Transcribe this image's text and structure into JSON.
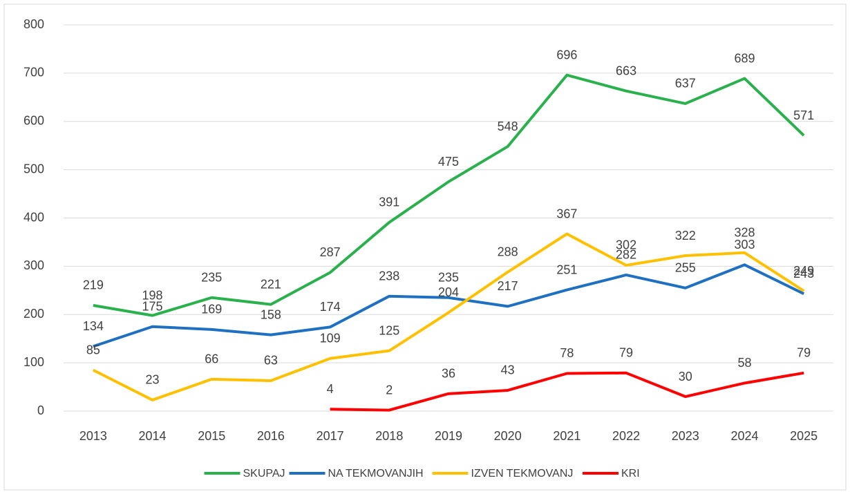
{
  "chart_data": {
    "type": "line",
    "categories": [
      "2013",
      "2014",
      "2015",
      "2016",
      "2017",
      "2018",
      "2019",
      "2020",
      "2021",
      "2022",
      "2023",
      "2024",
      "2025"
    ],
    "series": [
      {
        "name": "SKUPAJ",
        "color": "#2ab04c",
        "values": [
          219,
          198,
          235,
          221,
          287,
          391,
          475,
          548,
          696,
          663,
          637,
          689,
          571
        ]
      },
      {
        "name": "NA TEKMOVANJIH",
        "color": "#1f70c1",
        "values": [
          134,
          175,
          169,
          158,
          174,
          238,
          235,
          217,
          251,
          282,
          255,
          303,
          243
        ]
      },
      {
        "name": "IZVEN TEKMOVANJ",
        "color": "#ffc000",
        "values": [
          85,
          23,
          66,
          63,
          109,
          125,
          204,
          288,
          367,
          302,
          322,
          328,
          249
        ]
      },
      {
        "name": "KRI",
        "color": "#ff0000",
        "values": [
          null,
          null,
          null,
          null,
          4,
          2,
          36,
          43,
          78,
          79,
          30,
          58,
          79
        ]
      }
    ],
    "ylim": [
      0,
      800
    ],
    "yticks": [
      0,
      100,
      200,
      300,
      400,
      500,
      600,
      700,
      800
    ],
    "grid": true,
    "legend": "bottom"
  }
}
